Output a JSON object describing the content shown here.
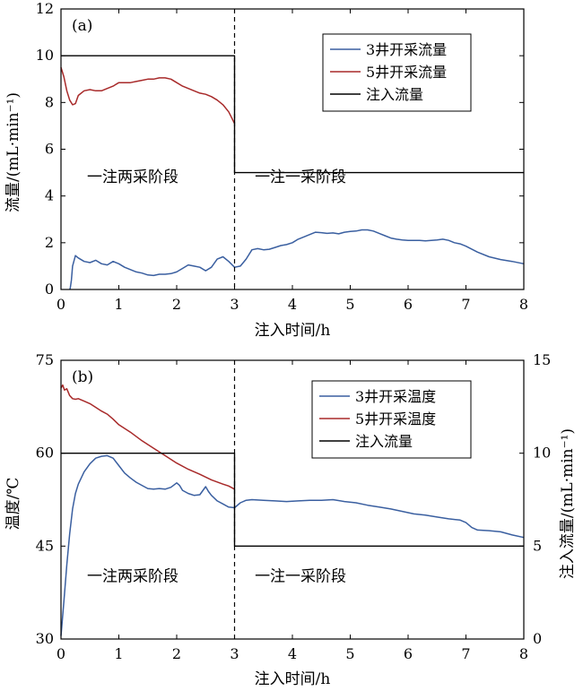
{
  "chart_data": [
    {
      "type": "line",
      "panel_label": "(a)",
      "xlabel": "注入时间/h",
      "ylabel": "流量/(mL·min⁻¹)",
      "xlim": [
        0,
        8
      ],
      "ylim": [
        0,
        12
      ],
      "xticks": [
        "0",
        "1",
        "2",
        "3",
        "4",
        "5",
        "6",
        "7",
        "8"
      ],
      "yticks": [
        "0",
        "2",
        "4",
        "6",
        "8",
        "10",
        "12"
      ],
      "grid": false,
      "legend_position": "top-right",
      "divider_x": 3,
      "annotations": [
        {
          "text": "一注两采阶段",
          "x": 0.45,
          "y": 4.6
        },
        {
          "text": "一注一采阶段",
          "x": 3.35,
          "y": 4.6
        }
      ],
      "series": [
        {
          "name": "3井开采流量",
          "color": "#3a5fa0",
          "x": [
            0.15,
            0.16,
            0.18,
            0.2,
            0.25,
            0.3,
            0.4,
            0.5,
            0.6,
            0.7,
            0.8,
            0.9,
            1.0,
            1.1,
            1.2,
            1.3,
            1.4,
            1.5,
            1.6,
            1.7,
            1.8,
            1.9,
            2.0,
            2.1,
            2.2,
            2.3,
            2.4,
            2.5,
            2.6,
            2.7,
            2.8,
            2.9,
            3.0,
            3.1,
            3.2,
            3.3,
            3.4,
            3.5,
            3.6,
            3.7,
            3.8,
            3.9,
            4.0,
            4.1,
            4.2,
            4.3,
            4.4,
            4.5,
            4.6,
            4.7,
            4.8,
            4.9,
            5.0,
            5.1,
            5.2,
            5.3,
            5.4,
            5.5,
            5.6,
            5.7,
            5.8,
            5.9,
            6.0,
            6.1,
            6.2,
            6.3,
            6.4,
            6.5,
            6.6,
            6.7,
            6.8,
            6.9,
            7.0,
            7.2,
            7.4,
            7.6,
            7.8,
            8.0
          ],
          "y": [
            0,
            0.05,
            0.4,
            1.0,
            1.45,
            1.35,
            1.2,
            1.15,
            1.25,
            1.1,
            1.05,
            1.2,
            1.1,
            0.95,
            0.85,
            0.75,
            0.7,
            0.62,
            0.6,
            0.65,
            0.65,
            0.68,
            0.75,
            0.9,
            1.05,
            1.0,
            0.95,
            0.8,
            0.95,
            1.3,
            1.4,
            1.2,
            0.95,
            1.0,
            1.3,
            1.7,
            1.75,
            1.7,
            1.72,
            1.8,
            1.88,
            1.92,
            2.0,
            2.15,
            2.25,
            2.35,
            2.45,
            2.43,
            2.4,
            2.42,
            2.38,
            2.45,
            2.48,
            2.5,
            2.55,
            2.55,
            2.5,
            2.4,
            2.3,
            2.2,
            2.15,
            2.12,
            2.1,
            2.1,
            2.1,
            2.08,
            2.1,
            2.12,
            2.15,
            2.1,
            2.0,
            1.95,
            1.85,
            1.6,
            1.4,
            1.28,
            1.2,
            1.1
          ]
        },
        {
          "name": "5井开采流量",
          "color": "#a82a2a",
          "x": [
            0.0,
            0.05,
            0.1,
            0.15,
            0.2,
            0.25,
            0.3,
            0.4,
            0.5,
            0.6,
            0.7,
            0.8,
            0.9,
            1.0,
            1.1,
            1.2,
            1.3,
            1.4,
            1.5,
            1.6,
            1.7,
            1.8,
            1.9,
            2.0,
            2.1,
            2.2,
            2.3,
            2.4,
            2.5,
            2.6,
            2.7,
            2.8,
            2.9,
            3.0
          ],
          "y": [
            9.5,
            9.1,
            8.5,
            8.1,
            7.9,
            7.95,
            8.3,
            8.5,
            8.55,
            8.5,
            8.5,
            8.6,
            8.7,
            8.85,
            8.85,
            8.85,
            8.9,
            8.95,
            9.0,
            9.0,
            9.05,
            9.05,
            9.0,
            8.85,
            8.7,
            8.6,
            8.5,
            8.4,
            8.35,
            8.25,
            8.1,
            7.9,
            7.6,
            7.1
          ]
        },
        {
          "name": "注入流量",
          "color": "#000000",
          "x": [
            0,
            3,
            3,
            8
          ],
          "y": [
            10,
            10,
            5,
            5
          ]
        }
      ]
    },
    {
      "type": "line",
      "panel_label": "(b)",
      "xlabel": "注入时间/h",
      "ylabel": "温度/℃",
      "ylabel_right": "注入流量/(mL·min⁻¹)",
      "xlim": [
        0,
        8
      ],
      "ylim": [
        30,
        75
      ],
      "ylim_right": [
        0,
        15
      ],
      "xticks": [
        "0",
        "1",
        "2",
        "3",
        "4",
        "5",
        "6",
        "7",
        "8"
      ],
      "yticks": [
        "30",
        "45",
        "60",
        "75"
      ],
      "yticks_right": [
        "0",
        "5",
        "10",
        "15"
      ],
      "grid": false,
      "legend_position": "top-right",
      "divider_x": 3,
      "annotations": [
        {
          "text": "一注两采阶段",
          "x": 0.45,
          "y": 39.3
        },
        {
          "text": "一注一采阶段",
          "x": 3.35,
          "y": 39.3
        }
      ],
      "series": [
        {
          "name": "3井开采温度",
          "color": "#3a5fa0",
          "axis": "left",
          "x": [
            0.0,
            0.05,
            0.1,
            0.15,
            0.2,
            0.25,
            0.3,
            0.4,
            0.5,
            0.6,
            0.7,
            0.8,
            0.9,
            1.0,
            1.1,
            1.2,
            1.3,
            1.4,
            1.5,
            1.6,
            1.7,
            1.8,
            1.9,
            2.0,
            2.05,
            2.1,
            2.2,
            2.3,
            2.4,
            2.5,
            2.55,
            2.6,
            2.7,
            2.8,
            2.9,
            3.0,
            3.1,
            3.2,
            3.3,
            3.5,
            3.7,
            3.9,
            4.1,
            4.3,
            4.5,
            4.7,
            4.9,
            5.1,
            5.3,
            5.5,
            5.7,
            5.9,
            6.1,
            6.3,
            6.5,
            6.7,
            6.9,
            7.0,
            7.1,
            7.2,
            7.4,
            7.6,
            7.8,
            8.0
          ],
          "y": [
            30.5,
            36,
            42,
            47,
            51,
            53.5,
            55,
            57,
            58.3,
            59.2,
            59.5,
            59.6,
            59.2,
            58,
            56.8,
            56,
            55.3,
            54.8,
            54.3,
            54.2,
            54.3,
            54.2,
            54.5,
            55.2,
            54.8,
            54,
            53.5,
            53.2,
            53.3,
            54.6,
            53.8,
            53.2,
            52.3,
            51.8,
            51.3,
            51.2,
            52.0,
            52.4,
            52.5,
            52.4,
            52.3,
            52.2,
            52.3,
            52.4,
            52.4,
            52.5,
            52.2,
            52.0,
            51.6,
            51.3,
            51.0,
            50.6,
            50.2,
            50.0,
            49.7,
            49.4,
            49.2,
            48.8,
            48.0,
            47.6,
            47.5,
            47.3,
            46.8,
            46.4
          ]
        },
        {
          "name": "5井开采温度",
          "color": "#a82a2a",
          "axis": "left",
          "x": [
            0.0,
            0.03,
            0.06,
            0.1,
            0.15,
            0.2,
            0.25,
            0.3,
            0.4,
            0.5,
            0.6,
            0.7,
            0.8,
            0.9,
            1.0,
            1.2,
            1.4,
            1.6,
            1.8,
            2.0,
            2.2,
            2.4,
            2.6,
            2.8,
            2.9,
            3.0
          ],
          "y": [
            70.5,
            71.0,
            70.2,
            70.4,
            69.3,
            68.8,
            68.7,
            68.8,
            68.4,
            68.0,
            67.4,
            66.8,
            66.3,
            65.5,
            64.6,
            63.4,
            62.0,
            60.8,
            59.6,
            58.4,
            57.4,
            56.6,
            55.7,
            55.0,
            54.7,
            54.2
          ]
        },
        {
          "name": "注入流量",
          "color": "#000000",
          "axis": "right",
          "x": [
            0,
            3,
            3,
            8
          ],
          "y": [
            10,
            10,
            5,
            5
          ]
        }
      ]
    }
  ]
}
